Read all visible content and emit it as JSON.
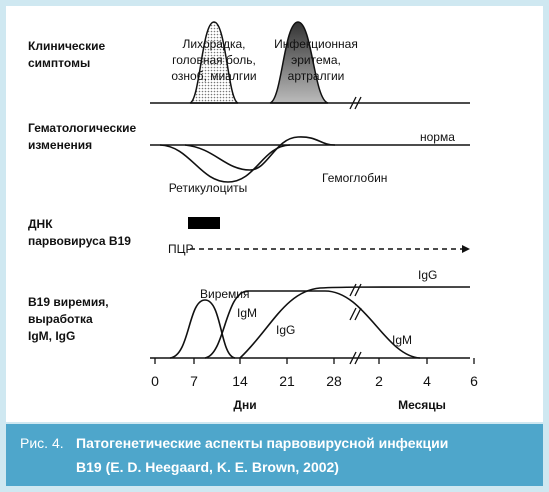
{
  "panels": [
    {
      "label": [
        "Клинические",
        "симптомы"
      ],
      "notes": [
        {
          "lines": [
            "Лихорадка,",
            "головная боль,",
            "озноб, миалгии"
          ]
        },
        {
          "lines": [
            "Инфекционная",
            "эритема,",
            "артралгии"
          ]
        }
      ]
    },
    {
      "label": [
        "Гематологические",
        "изменения"
      ],
      "notes": [
        {
          "lines": [
            "норма"
          ]
        },
        {
          "lines": [
            "Ретикулоциты"
          ]
        },
        {
          "lines": [
            "Гемоглобин"
          ]
        }
      ]
    },
    {
      "label": [
        "ДНК",
        "парвовируса B19"
      ],
      "notes": [
        {
          "lines": [
            "ПЦР"
          ]
        }
      ]
    },
    {
      "label": [
        "B19 виремия,",
        "выработка",
        "IgM, IgG"
      ],
      "notes": [
        {
          "lines": [
            "Виремия"
          ]
        },
        {
          "lines": [
            "IgM"
          ]
        },
        {
          "lines": [
            "IgG"
          ]
        },
        {
          "lines": [
            "IgG"
          ]
        },
        {
          "lines": [
            "IgM"
          ]
        }
      ]
    }
  ],
  "axis": {
    "ticks": [
      "0",
      "7",
      "14",
      "21",
      "28",
      "2",
      "4",
      "6"
    ],
    "units": [
      "Дни",
      "Месяцы"
    ]
  },
  "caption": {
    "number": "Рис. 4.",
    "lines": [
      "Патогенетические аспекты парвовирусной инфекции",
      "B19 (E. D. Heegaard, K. E. Brown, 2002)"
    ]
  }
}
